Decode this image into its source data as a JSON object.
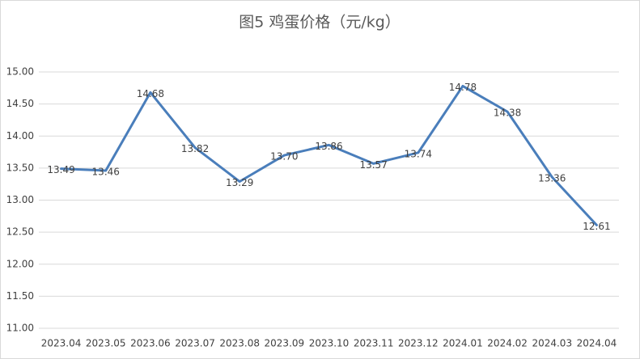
{
  "chart_data": {
    "type": "line",
    "title": "图5 鸡蛋价格（元/kg）",
    "categories": [
      "2023.04",
      "2023.05",
      "2023.06",
      "2023.07",
      "2023.08",
      "2023.09",
      "2023.10",
      "2023.11",
      "2023.12",
      "2024.01",
      "2024.02",
      "2024.03",
      "2024.04"
    ],
    "values": [
      13.49,
      13.46,
      14.68,
      13.82,
      13.29,
      13.7,
      13.86,
      13.57,
      13.74,
      14.78,
      14.38,
      13.36,
      12.61
    ],
    "value_labels": [
      "13.49",
      "13.46",
      "14.68",
      "13.82",
      "13.29",
      "13.70",
      "13.86",
      "13.57",
      "13.74",
      "14.78",
      "14.38",
      "13.36",
      "12.61"
    ],
    "color": "#4a7ebb",
    "ylim": [
      11,
      15
    ],
    "yticks": [
      {
        "value": 11,
        "label": "11.00"
      },
      {
        "value": 11.5,
        "label": "11.50"
      },
      {
        "value": 12,
        "label": "12.00"
      },
      {
        "value": 12.5,
        "label": "12.50"
      },
      {
        "value": 13,
        "label": "13.00"
      },
      {
        "value": 13.5,
        "label": "13.50"
      },
      {
        "value": 14,
        "label": "14.00"
      },
      {
        "value": 14.5,
        "label": "14.50"
      },
      {
        "value": 15,
        "label": "15.00"
      }
    ],
    "grid": true
  }
}
